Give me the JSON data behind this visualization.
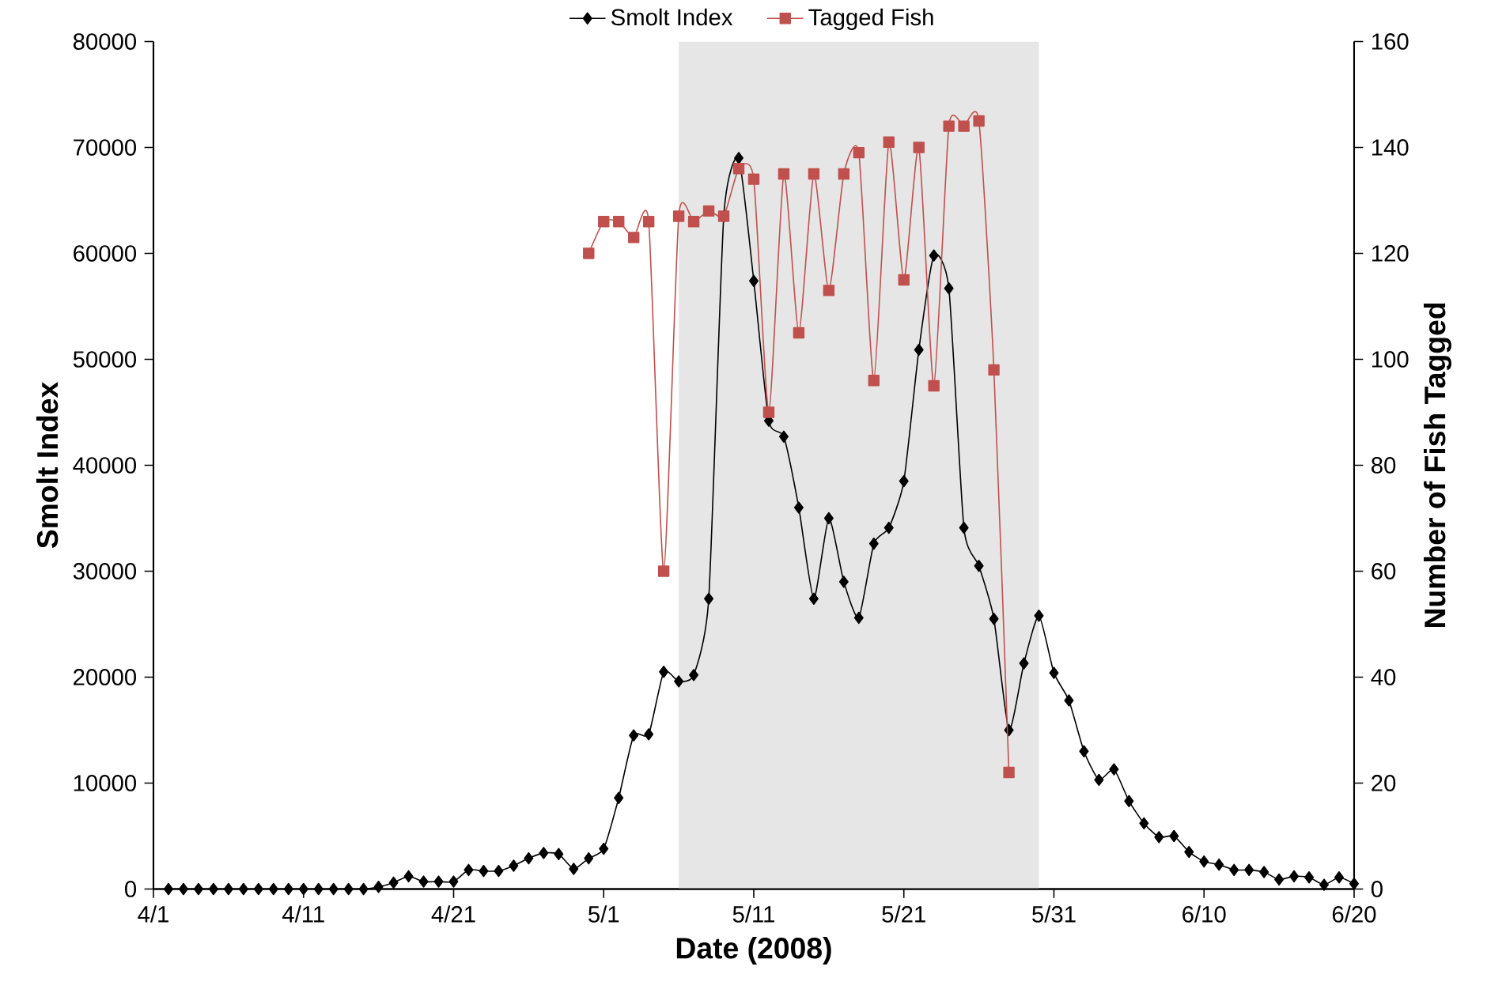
{
  "chart_data": {
    "type": "line",
    "xlabel": "Date (2008)",
    "ylabel": "Smolt Index",
    "y2label": "Number of Fish Tagged",
    "xlim": [
      "2008-04-01",
      "2008-06-20"
    ],
    "xticks": [
      {
        "value": "2008-04-01",
        "label": "4/1"
      },
      {
        "value": "2008-04-11",
        "label": "4/11"
      },
      {
        "value": "2008-04-21",
        "label": "4/21"
      },
      {
        "value": "2008-05-01",
        "label": "5/1"
      },
      {
        "value": "2008-05-11",
        "label": "5/11"
      },
      {
        "value": "2008-05-21",
        "label": "5/21"
      },
      {
        "value": "2008-05-31",
        "label": "5/31"
      },
      {
        "value": "2008-06-10",
        "label": "6/10"
      },
      {
        "value": "2008-06-20",
        "label": "6/20"
      }
    ],
    "ylim": [
      0,
      80000
    ],
    "yticks": [
      0,
      10000,
      20000,
      30000,
      40000,
      50000,
      60000,
      70000,
      80000
    ],
    "y2lim": [
      0,
      160
    ],
    "y2ticks": [
      0,
      20,
      40,
      60,
      80,
      100,
      120,
      140,
      160
    ],
    "legend": "top",
    "grid": false,
    "bands": [
      {
        "axis": "x",
        "from": "2008-05-06",
        "to": "2008-05-30",
        "color": "#e6e6e6"
      }
    ],
    "series": [
      {
        "name": "Smolt Index",
        "color": "#000000",
        "marker": "diamond",
        "x": [
          "2008-04-02",
          "2008-04-03",
          "2008-04-04",
          "2008-04-05",
          "2008-04-06",
          "2008-04-07",
          "2008-04-08",
          "2008-04-09",
          "2008-04-10",
          "2008-04-11",
          "2008-04-12",
          "2008-04-13",
          "2008-04-14",
          "2008-04-15",
          "2008-04-16",
          "2008-04-17",
          "2008-04-18",
          "2008-04-19",
          "2008-04-20",
          "2008-04-21",
          "2008-04-22",
          "2008-04-23",
          "2008-04-24",
          "2008-04-25",
          "2008-04-26",
          "2008-04-27",
          "2008-04-28",
          "2008-04-29",
          "2008-04-30",
          "2008-05-01",
          "2008-05-02",
          "2008-05-03",
          "2008-05-04",
          "2008-05-05",
          "2008-05-06",
          "2008-05-07",
          "2008-05-08",
          "2008-05-09",
          "2008-05-10",
          "2008-05-11",
          "2008-05-12",
          "2008-05-13",
          "2008-05-14",
          "2008-05-15",
          "2008-05-16",
          "2008-05-17",
          "2008-05-18",
          "2008-05-19",
          "2008-05-20",
          "2008-05-21",
          "2008-05-22",
          "2008-05-23",
          "2008-05-24",
          "2008-05-25",
          "2008-05-26",
          "2008-05-27",
          "2008-05-28",
          "2008-05-29",
          "2008-05-30",
          "2008-05-31",
          "2008-06-01",
          "2008-06-02",
          "2008-06-03",
          "2008-06-04",
          "2008-06-05",
          "2008-06-06",
          "2008-06-07",
          "2008-06-08",
          "2008-06-09",
          "2008-06-10",
          "2008-06-11",
          "2008-06-12",
          "2008-06-13",
          "2008-06-14",
          "2008-06-15",
          "2008-06-16",
          "2008-06-17",
          "2008-06-18",
          "2008-06-19",
          "2008-06-20"
        ],
        "values": [
          0,
          0,
          0,
          0,
          0,
          0,
          0,
          0,
          0,
          0,
          0,
          0,
          0,
          0,
          200,
          600,
          1200,
          700,
          700,
          700,
          1800,
          1700,
          1700,
          2200,
          2900,
          3400,
          3300,
          1900,
          2900,
          3800,
          8600,
          14500,
          14600,
          20500,
          19600,
          20200,
          27400,
          63500,
          69000,
          57400,
          44200,
          42700,
          36000,
          27400,
          35000,
          29000,
          25600,
          32600,
          34100,
          38500,
          50900,
          59800,
          56700,
          34100,
          30500,
          25500,
          15000,
          21300,
          25800,
          20400,
          17800,
          13000,
          10300,
          11300,
          8300,
          6200,
          4900,
          5000,
          3500,
          2600,
          2300,
          1800,
          1800,
          1600,
          900,
          1200,
          1100,
          400,
          1100,
          500
        ]
      },
      {
        "name": "Tagged Fish",
        "color": "#c0504d",
        "marker": "square",
        "axis": "y2",
        "x": [
          "2008-04-30",
          "2008-05-01",
          "2008-05-02",
          "2008-05-03",
          "2008-05-04",
          "2008-05-05",
          "2008-05-06",
          "2008-05-07",
          "2008-05-08",
          "2008-05-09",
          "2008-05-10",
          "2008-05-11",
          "2008-05-12",
          "2008-05-13",
          "2008-05-14",
          "2008-05-15",
          "2008-05-16",
          "2008-05-17",
          "2008-05-18",
          "2008-05-19",
          "2008-05-20",
          "2008-05-21",
          "2008-05-22",
          "2008-05-23",
          "2008-05-24",
          "2008-05-25",
          "2008-05-26",
          "2008-05-27",
          "2008-05-28"
        ],
        "values": [
          120,
          126,
          126,
          123,
          126,
          60,
          127,
          126,
          128,
          127,
          136,
          134,
          90,
          135,
          105,
          135,
          113,
          135,
          139,
          96,
          141,
          115,
          140,
          95,
          144,
          144,
          145,
          98,
          22
        ]
      }
    ]
  }
}
